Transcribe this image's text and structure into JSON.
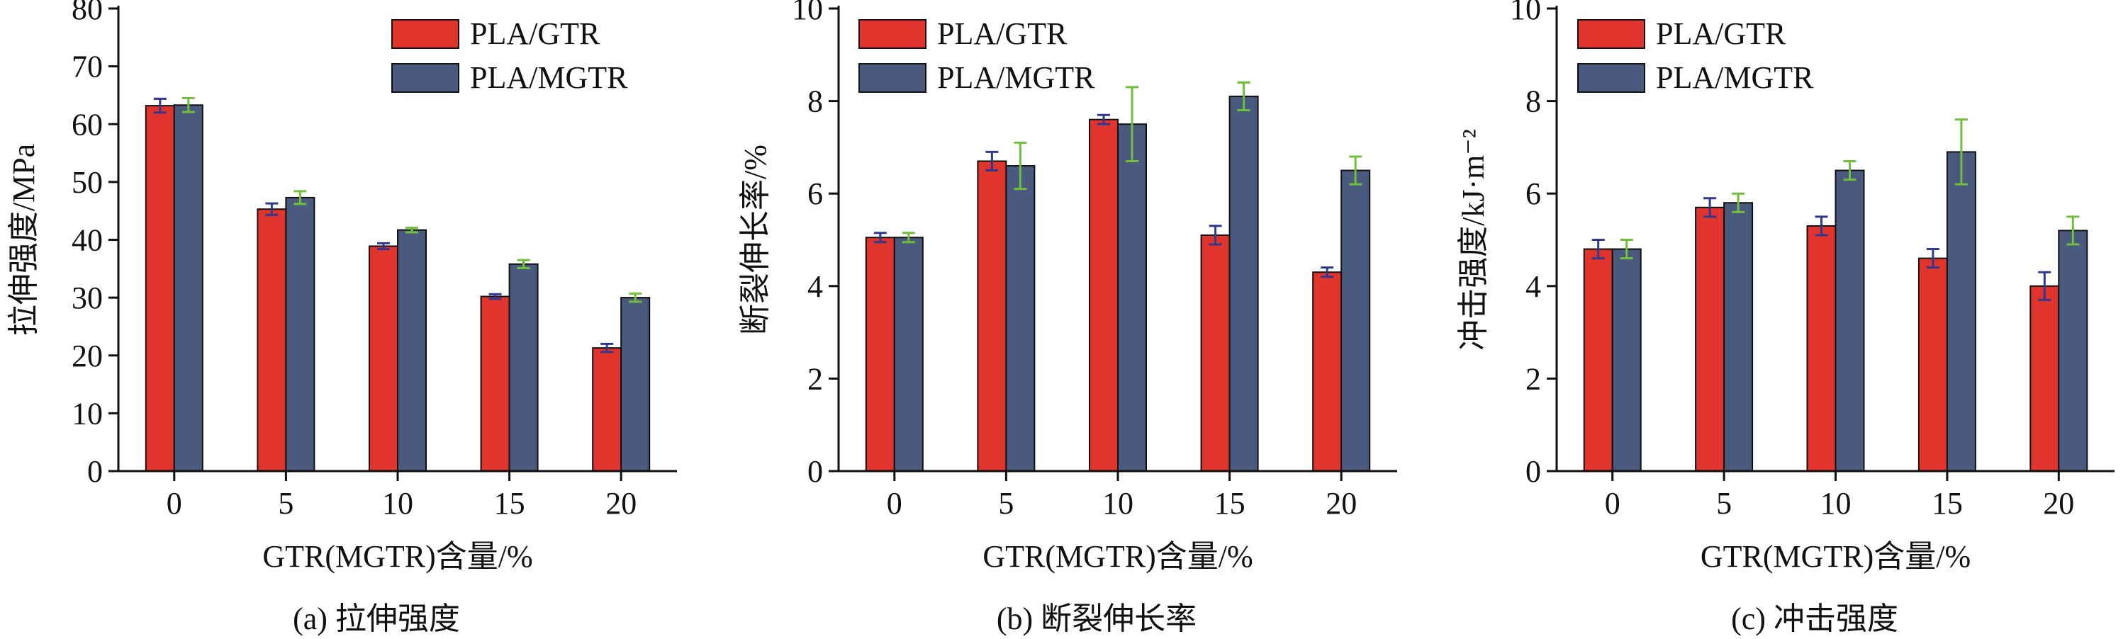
{
  "colors": {
    "gtr": "#e0342c",
    "mgtr": "#4a5a7e",
    "err_gtr": "#2f3a8f",
    "err_mgtr": "#6fbf3a",
    "axis": "#111111"
  },
  "chart_data": [
    {
      "type": "bar",
      "caption": "(a) 拉伸强度",
      "xlabel": "GTR(MGTR)含量/%",
      "ylabel": "拉伸强度/MPa",
      "categories": [
        "0",
        "5",
        "10",
        "15",
        "20"
      ],
      "ylim": [
        0,
        80
      ],
      "yticks": [
        0,
        10,
        20,
        30,
        40,
        50,
        60,
        70,
        80
      ],
      "legend_position": "top-right",
      "series": [
        {
          "name": "PLA/GTR",
          "values": [
            63.2,
            45.3,
            38.9,
            30.2,
            21.3
          ],
          "errors": [
            1.2,
            1.0,
            0.5,
            0.4,
            0.7
          ]
        },
        {
          "name": "PLA/MGTR",
          "values": [
            63.3,
            47.3,
            41.7,
            35.8,
            30.0
          ],
          "errors": [
            1.2,
            1.1,
            0.4,
            0.7,
            0.7
          ]
        }
      ]
    },
    {
      "type": "bar",
      "caption": "(b) 断裂伸长率",
      "xlabel": "GTR(MGTR)含量/%",
      "ylabel": "断裂伸长率/%",
      "categories": [
        "0",
        "5",
        "10",
        "15",
        "20"
      ],
      "ylim": [
        0,
        10
      ],
      "yticks": [
        0,
        2,
        4,
        6,
        8,
        10
      ],
      "legend_position": "top-left",
      "series": [
        {
          "name": "PLA/GTR",
          "values": [
            5.05,
            6.7,
            7.6,
            5.1,
            4.3
          ],
          "errors": [
            0.1,
            0.2,
            0.1,
            0.2,
            0.1
          ]
        },
        {
          "name": "PLA/MGTR",
          "values": [
            5.05,
            6.6,
            7.5,
            8.1,
            6.5
          ],
          "errors": [
            0.1,
            0.5,
            0.8,
            0.3,
            0.3
          ]
        }
      ]
    },
    {
      "type": "bar",
      "caption": "(c) 冲击强度",
      "xlabel": "GTR(MGTR)含量/%",
      "ylabel": "冲击强度/kJ·m⁻²",
      "categories": [
        "0",
        "5",
        "10",
        "15",
        "20"
      ],
      "ylim": [
        0,
        10
      ],
      "yticks": [
        0,
        2,
        4,
        6,
        8,
        10
      ],
      "legend_position": "top-left",
      "series": [
        {
          "name": "PLA/GTR",
          "values": [
            4.8,
            5.7,
            5.3,
            4.6,
            4.0
          ],
          "errors": [
            0.2,
            0.2,
            0.2,
            0.2,
            0.3
          ]
        },
        {
          "name": "PLA/MGTR",
          "values": [
            4.8,
            5.8,
            6.5,
            6.9,
            5.2
          ],
          "errors": [
            0.2,
            0.2,
            0.2,
            0.7,
            0.3
          ]
        }
      ]
    }
  ]
}
